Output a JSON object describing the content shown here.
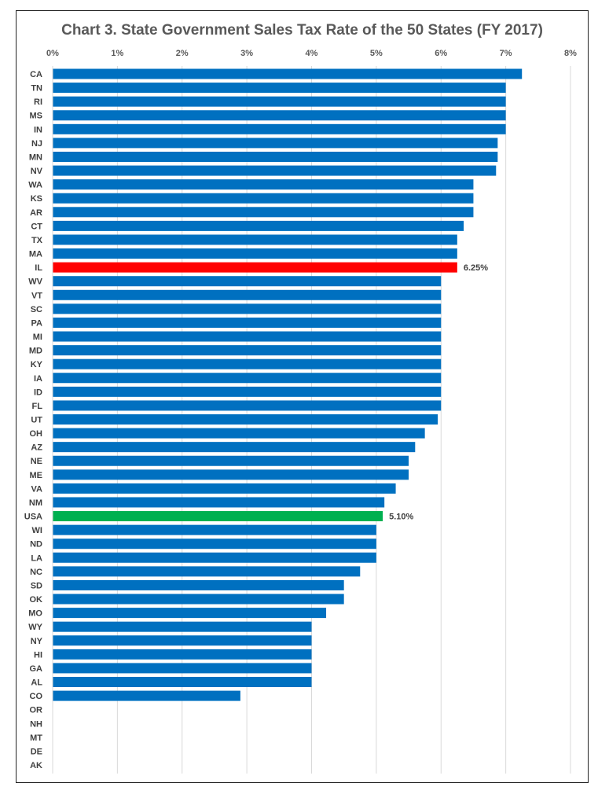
{
  "chart_data": {
    "type": "bar",
    "orientation": "horizontal",
    "title": "Chart 3. State Government Sales Tax Rate of the 50 States (FY 2017)",
    "xlabel": "",
    "ylabel": "",
    "xlim": [
      0,
      8
    ],
    "x_ticks": [
      "0%",
      "1%",
      "2%",
      "3%",
      "4%",
      "5%",
      "6%",
      "7%",
      "8%"
    ],
    "grid": "vertical",
    "bar_color": "#0070C0",
    "highlight_colors": {
      "IL": "#FF0000",
      "USA": "#00B050"
    },
    "categories": [
      "CA",
      "TN",
      "RI",
      "MS",
      "IN",
      "NJ",
      "MN",
      "NV",
      "WA",
      "KS",
      "AR",
      "CT",
      "TX",
      "MA",
      "IL",
      "WV",
      "VT",
      "SC",
      "PA",
      "MI",
      "MD",
      "KY",
      "IA",
      "ID",
      "FL",
      "UT",
      "OH",
      "AZ",
      "NE",
      "ME",
      "VA",
      "NM",
      "USA",
      "WI",
      "ND",
      "LA",
      "NC",
      "SD",
      "OK",
      "MO",
      "WY",
      "NY",
      "HI",
      "GA",
      "AL",
      "CO",
      "OR",
      "NH",
      "MT",
      "DE",
      "AK"
    ],
    "values": [
      7.25,
      7.0,
      7.0,
      7.0,
      7.0,
      6.875,
      6.875,
      6.85,
      6.5,
      6.5,
      6.5,
      6.35,
      6.25,
      6.25,
      6.25,
      6.0,
      6.0,
      6.0,
      6.0,
      6.0,
      6.0,
      6.0,
      6.0,
      6.0,
      6.0,
      5.95,
      5.75,
      5.6,
      5.5,
      5.5,
      5.3,
      5.125,
      5.1,
      5.0,
      5.0,
      5.0,
      4.75,
      4.5,
      4.5,
      4.225,
      4.0,
      4.0,
      4.0,
      4.0,
      4.0,
      2.9,
      0,
      0,
      0,
      0,
      0
    ],
    "data_labels": {
      "IL": "6.25%",
      "USA": "5.10%"
    }
  }
}
